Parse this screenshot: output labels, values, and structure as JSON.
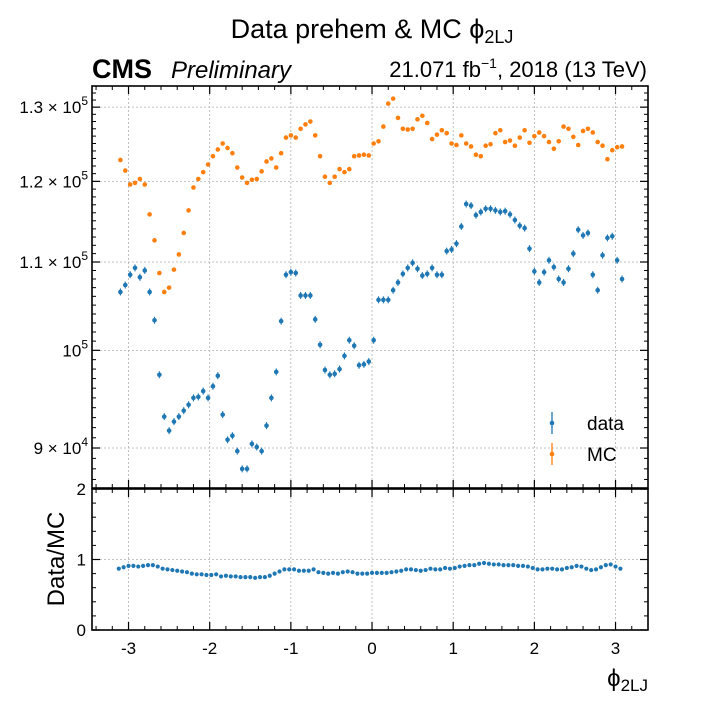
{
  "figure": {
    "title_main": "Data prehem & MC ",
    "title_phi": "ϕ",
    "title_sub": "2LJ",
    "experiment": "CMS",
    "status": "Preliminary",
    "lumi_value": "21.071 fb",
    "lumi_exp": "−1",
    "lumi_rest": ", 2018 (13 TeV)"
  },
  "colors": {
    "data": "#1f77b4",
    "mc": "#ff7f0e"
  },
  "chart_data": [
    {
      "type": "scatter",
      "panel": "main",
      "xlim": [
        -3.45,
        3.4
      ],
      "ylim": [
        86200,
        133000
      ],
      "yscale": "log",
      "grid": true,
      "legend": {
        "placement": "bottom-right",
        "entries": [
          "data",
          "MC"
        ]
      },
      "yticks": [
        {
          "value": 90000,
          "mantissa": "9",
          "exp": "4"
        },
        {
          "value": 100000,
          "mantissa": "",
          "exp": "5"
        },
        {
          "value": 110000,
          "mantissa": "1.1",
          "exp": "5"
        },
        {
          "value": 120000,
          "mantissa": "1.2",
          "exp": "5"
        },
        {
          "value": 130000,
          "mantissa": "1.3",
          "exp": "5"
        }
      ],
      "x": [
        -3.1,
        -3.04,
        -2.98,
        -2.92,
        -2.86,
        -2.8,
        -2.74,
        -2.68,
        -2.62,
        -2.56,
        -2.5,
        -2.44,
        -2.38,
        -2.32,
        -2.26,
        -2.2,
        -2.14,
        -2.08,
        -2.02,
        -1.96,
        -1.9,
        -1.84,
        -1.78,
        -1.72,
        -1.66,
        -1.6,
        -1.54,
        -1.48,
        -1.42,
        -1.36,
        -1.3,
        -1.24,
        -1.18,
        -1.12,
        -1.06,
        -1.0,
        -0.94,
        -0.88,
        -0.82,
        -0.76,
        -0.7,
        -0.64,
        -0.58,
        -0.52,
        -0.46,
        -0.4,
        -0.34,
        -0.28,
        -0.22,
        -0.16,
        -0.1,
        -0.04,
        0.02,
        0.08,
        0.14,
        0.2,
        0.26,
        0.32,
        0.38,
        0.44,
        0.5,
        0.56,
        0.62,
        0.68,
        0.74,
        0.8,
        0.86,
        0.92,
        0.98,
        1.04,
        1.1,
        1.16,
        1.22,
        1.28,
        1.34,
        1.4,
        1.46,
        1.52,
        1.58,
        1.64,
        1.7,
        1.76,
        1.82,
        1.88,
        1.94,
        2.0,
        2.06,
        2.12,
        2.18,
        2.24,
        2.3,
        2.36,
        2.42,
        2.48,
        2.54,
        2.6,
        2.66,
        2.72,
        2.78,
        2.84,
        2.9,
        2.96,
        3.02,
        3.08
      ],
      "series": [
        {
          "name": "data",
          "values": [
            106500,
            107300,
            108500,
            109300,
            108200,
            109000,
            106500,
            103300,
            97400,
            93100,
            91700,
            92600,
            93100,
            93700,
            94300,
            95000,
            95100,
            95700,
            95000,
            96200,
            97300,
            93300,
            90800,
            91200,
            89700,
            88000,
            88000,
            90400,
            90100,
            89700,
            92200,
            95000,
            97700,
            103200,
            108500,
            108800,
            108700,
            106100,
            106100,
            106100,
            103400,
            100600,
            97900,
            97400,
            97500,
            98000,
            99400,
            101100,
            100500,
            98400,
            98500,
            98800,
            101100,
            105600,
            105600,
            105600,
            106700,
            107600,
            108600,
            109300,
            109900,
            109200,
            108400,
            108600,
            109300,
            108500,
            108500,
            111300,
            111500,
            112200,
            114300,
            117100,
            116900,
            115700,
            116100,
            116500,
            116500,
            116300,
            116100,
            116200,
            115800,
            115100,
            114400,
            114100,
            111600,
            108900,
            107600,
            108800,
            110200,
            109400,
            108000,
            107600,
            109200,
            111000,
            113900,
            113200,
            113500,
            108500,
            106700,
            110800,
            112900,
            113100,
            110200,
            108000
          ]
        },
        {
          "name": "MC",
          "values": [
            122800,
            121400,
            119600,
            119800,
            120300,
            119600,
            115800,
            112600,
            108700,
            106500,
            107000,
            109100,
            110900,
            113500,
            116300,
            119200,
            120300,
            121200,
            122200,
            123300,
            124200,
            125000,
            124400,
            123700,
            121800,
            120500,
            119800,
            120200,
            120300,
            121300,
            122600,
            123000,
            121800,
            123700,
            125800,
            126100,
            125800,
            127000,
            127600,
            128000,
            126100,
            123300,
            120600,
            119800,
            120600,
            121600,
            121200,
            121600,
            123300,
            123400,
            123500,
            123400,
            125000,
            125300,
            127300,
            130500,
            131200,
            128500,
            127000,
            126900,
            127000,
            128300,
            128800,
            127800,
            125600,
            126200,
            126800,
            126400,
            125000,
            124800,
            126100,
            125000,
            124600,
            123500,
            123300,
            124700,
            124900,
            126400,
            126800,
            125200,
            125400,
            124700,
            125800,
            126800,
            125100,
            126000,
            126500,
            126000,
            125200,
            124300,
            125300,
            127300,
            127000,
            125900,
            124800,
            126700,
            127000,
            126500,
            125200,
            124700,
            122900,
            124100,
            124500,
            124600
          ]
        }
      ]
    },
    {
      "type": "scatter",
      "panel": "ratio",
      "ylabel": "Data/MC",
      "xlabel_symbol": "ϕ",
      "xlabel_sub": "2LJ",
      "xlim": [
        -3.45,
        3.4
      ],
      "ylim": [
        0,
        2
      ],
      "grid": true,
      "xticks": [
        -3,
        -2,
        -1,
        0,
        1,
        2,
        3
      ],
      "xtick_labels": [
        "-3",
        "-2",
        "-1",
        "0",
        "1",
        "2",
        "3"
      ],
      "yticks": [
        0,
        1,
        2
      ],
      "ytick_labels": [
        "0",
        "1",
        "2"
      ],
      "x": [
        -3.12,
        -3.06,
        -3.0,
        -2.94,
        -2.88,
        -2.82,
        -2.76,
        -2.7,
        -2.64,
        -2.58,
        -2.52,
        -2.46,
        -2.4,
        -2.34,
        -2.28,
        -2.22,
        -2.16,
        -2.1,
        -2.04,
        -1.98,
        -1.92,
        -1.86,
        -1.8,
        -1.74,
        -1.68,
        -1.62,
        -1.56,
        -1.5,
        -1.44,
        -1.38,
        -1.32,
        -1.26,
        -1.2,
        -1.14,
        -1.08,
        -1.02,
        -0.96,
        -0.9,
        -0.84,
        -0.78,
        -0.72,
        -0.66,
        -0.6,
        -0.54,
        -0.48,
        -0.42,
        -0.36,
        -0.3,
        -0.24,
        -0.18,
        -0.12,
        -0.06,
        0.0,
        0.06,
        0.12,
        0.18,
        0.24,
        0.3,
        0.36,
        0.42,
        0.48,
        0.54,
        0.6,
        0.66,
        0.72,
        0.78,
        0.84,
        0.9,
        0.96,
        1.02,
        1.08,
        1.14,
        1.2,
        1.26,
        1.32,
        1.38,
        1.44,
        1.5,
        1.56,
        1.62,
        1.68,
        1.74,
        1.8,
        1.86,
        1.92,
        1.98,
        2.04,
        2.1,
        2.16,
        2.22,
        2.28,
        2.34,
        2.4,
        2.46,
        2.52,
        2.58,
        2.64,
        2.7,
        2.76,
        2.82,
        2.88,
        2.94,
        3.0,
        3.06
      ],
      "series": [
        {
          "name": "Data/MC",
          "values": [
            0.87,
            0.89,
            0.91,
            0.91,
            0.9,
            0.91,
            0.92,
            0.92,
            0.9,
            0.87,
            0.86,
            0.85,
            0.84,
            0.83,
            0.82,
            0.8,
            0.79,
            0.79,
            0.78,
            0.78,
            0.79,
            0.76,
            0.77,
            0.76,
            0.76,
            0.75,
            0.75,
            0.75,
            0.74,
            0.75,
            0.75,
            0.77,
            0.8,
            0.83,
            0.86,
            0.86,
            0.86,
            0.84,
            0.84,
            0.84,
            0.86,
            0.82,
            0.81,
            0.8,
            0.81,
            0.8,
            0.82,
            0.83,
            0.82,
            0.8,
            0.8,
            0.8,
            0.81,
            0.81,
            0.81,
            0.81,
            0.82,
            0.83,
            0.84,
            0.86,
            0.86,
            0.85,
            0.84,
            0.85,
            0.87,
            0.86,
            0.86,
            0.88,
            0.87,
            0.88,
            0.9,
            0.91,
            0.92,
            0.92,
            0.94,
            0.95,
            0.94,
            0.93,
            0.93,
            0.92,
            0.92,
            0.92,
            0.91,
            0.91,
            0.9,
            0.88,
            0.86,
            0.86,
            0.87,
            0.87,
            0.86,
            0.86,
            0.88,
            0.89,
            0.91,
            0.9,
            0.87,
            0.85,
            0.86,
            0.89,
            0.92,
            0.93,
            0.9,
            0.87
          ]
        }
      ]
    }
  ]
}
